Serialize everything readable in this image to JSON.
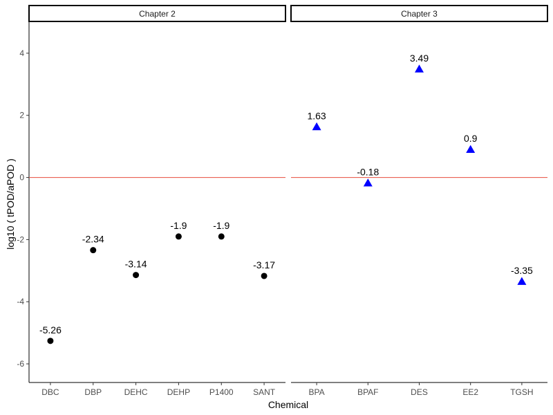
{
  "chart_data": {
    "type": "scatter",
    "xlabel": "Chemical",
    "ylabel": "log10 ( tPOD/aPOD )",
    "ylim": [
      -6.6,
      5.0
    ],
    "yticks": [
      -6,
      -4,
      -2,
      0,
      2,
      4
    ],
    "reference_line": {
      "y": 0,
      "color": "#e74c3c"
    },
    "grid": false,
    "legend": "none",
    "panels": [
      {
        "title": "Chapter 2",
        "marker": "circle",
        "color": "#000000",
        "categories": [
          "DBC",
          "DBP",
          "DEHC",
          "DEHP",
          "P1400",
          "SANT"
        ],
        "values": [
          -5.26,
          -2.34,
          -3.14,
          -1.9,
          -1.9,
          -3.17
        ],
        "labels": [
          "-5.26",
          "-2.34",
          "-3.14",
          "-1.9",
          "-1.9",
          "-3.17"
        ]
      },
      {
        "title": "Chapter 3",
        "marker": "triangle",
        "color": "#0000ff",
        "categories": [
          "BPA",
          "BPAF",
          "DES",
          "EE2",
          "TGSH"
        ],
        "values": [
          1.63,
          -0.18,
          3.49,
          0.9,
          -3.35
        ],
        "labels": [
          "1.63",
          "-0.18",
          "3.49",
          "0.9",
          "-3.35"
        ]
      }
    ]
  }
}
